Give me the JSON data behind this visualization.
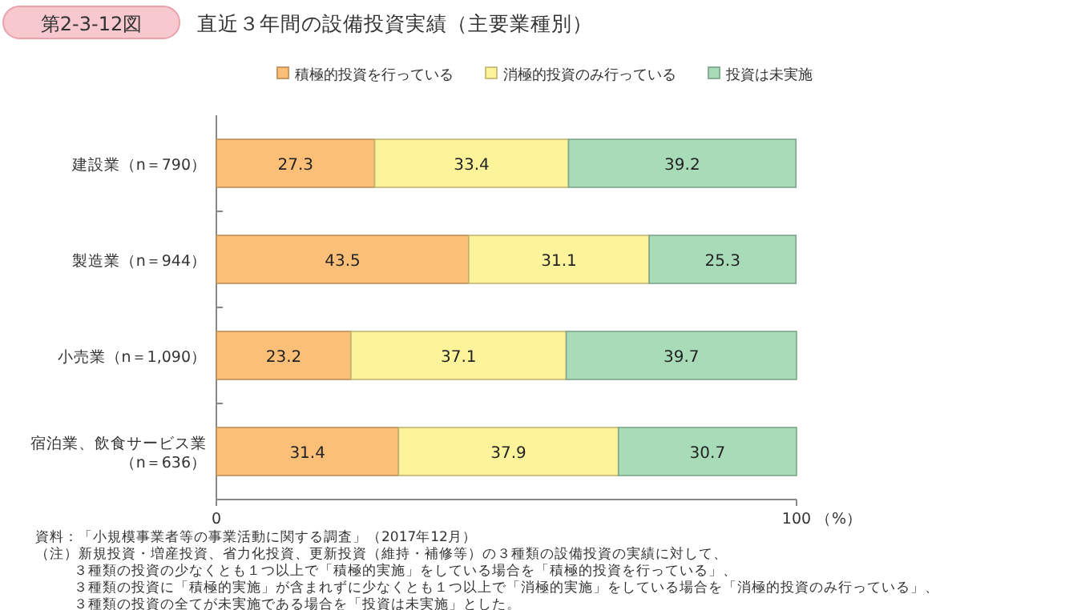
{
  "chart_data": {
    "type": "bar",
    "orientation": "horizontal",
    "stacked": true,
    "subtitle": "第2-3-12図",
    "title": "直近３年間の設備投資実績（主要業種別）",
    "xlabel": "（%）",
    "categories": [
      "建設業（n＝790）",
      "製造業（n＝944）",
      "小売業（n＝1,090）",
      "宿泊業、飲食サービス業（n＝636）"
    ],
    "series": [
      {
        "name": "積極的投資を行っている",
        "color": "#fbbf78",
        "values": [
          27.3,
          43.5,
          23.2,
          31.4
        ]
      },
      {
        "name": "消極的投資のみ行っている",
        "color": "#fdf39b",
        "values": [
          33.4,
          31.1,
          37.1,
          37.9
        ]
      },
      {
        "name": "投資は未実施",
        "color": "#a8dbb8",
        "values": [
          39.2,
          25.3,
          39.7,
          30.7
        ]
      }
    ],
    "xlim": [
      0,
      100
    ],
    "xticks": [
      0,
      100
    ],
    "data_labels": true,
    "legend": "top",
    "grid": false,
    "annotations": [
      "資料：「小規模事業者等の事業活動に関する調査」（2017年12月）",
      "（注）新規投資・増産投資、省力化投資、更新投資（維持・補修等）の３種類の設備投資の実績に対して、",
      "３種類の投資の少なくとも１つ以上で「積極的実施」をしている場合を「積極的投資を行っている」、",
      "３種類の投資に「積極的実施」が含まれずに少なくとも１つ以上で「消極的実施」をしている場合を「消極的投資のみ行っている」、",
      "３種類の投資の全てが未実施である場合を「投資は未実施」とした。"
    ]
  }
}
